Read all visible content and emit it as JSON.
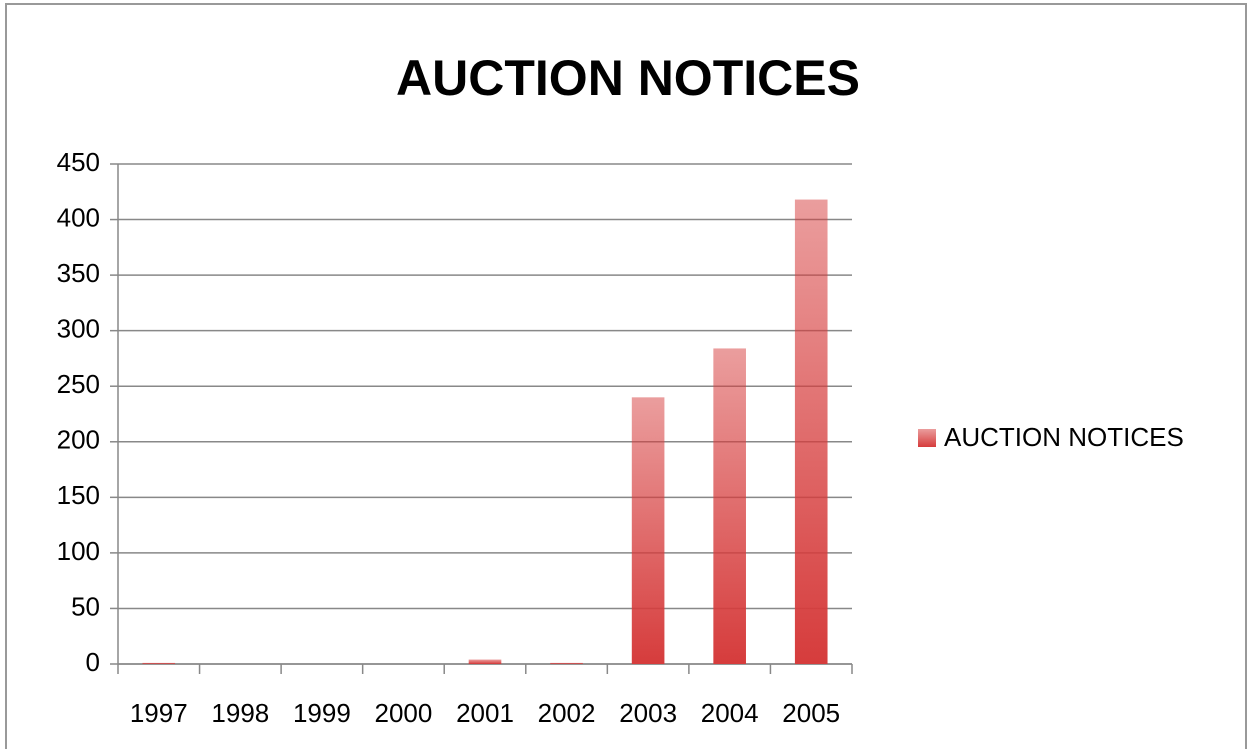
{
  "chart_data": {
    "type": "bar",
    "title": "AUCTION NOTICES",
    "categories": [
      "1997",
      "1998",
      "1999",
      "2000",
      "2001",
      "2002",
      "2003",
      "2004",
      "2005"
    ],
    "series": [
      {
        "name": "AUCTION NOTICES",
        "color": "#d63c3c",
        "values": [
          1,
          0,
          0,
          0,
          4,
          1,
          240,
          284,
          418
        ]
      }
    ],
    "ylim": [
      0,
      450
    ],
    "yticks": [
      0,
      50,
      100,
      150,
      200,
      250,
      300,
      350,
      400,
      450
    ],
    "grid": true,
    "legend": "right"
  }
}
